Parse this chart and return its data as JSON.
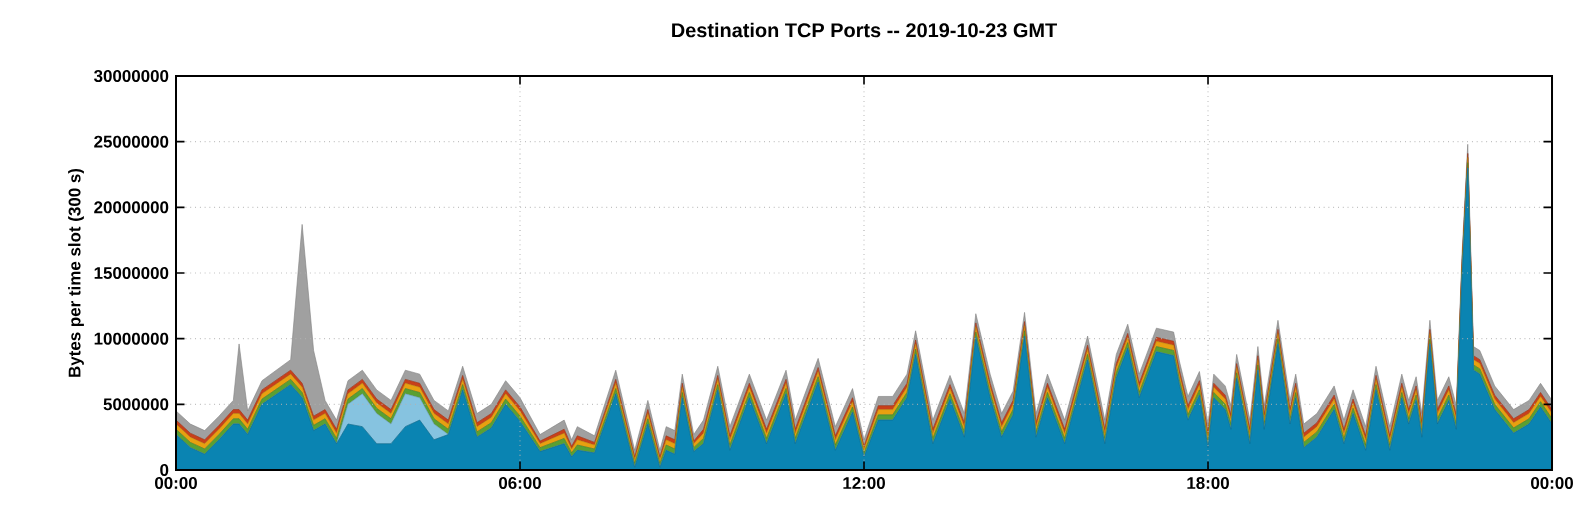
{
  "chart_data": {
    "type": "area",
    "stacked": true,
    "grid": true,
    "title": "Destination TCP Ports -- 2019-10-23 GMT",
    "ylabel": "Bytes per time slot (300 s)",
    "xlim": [
      0,
      24
    ],
    "xticks": [
      {
        "value": 0,
        "label": "00:00"
      },
      {
        "value": 6,
        "label": "06:00"
      },
      {
        "value": 12,
        "label": "12:00"
      },
      {
        "value": 18,
        "label": "18:00"
      },
      {
        "value": 24,
        "label": "00:00"
      }
    ],
    "ylim": [
      0,
      30000000
    ],
    "yticks": [
      0,
      5000000,
      10000000,
      15000000,
      20000000,
      25000000,
      30000000
    ],
    "x": [
      0,
      0.25,
      0.5,
      0.75,
      1.0,
      1.1,
      1.25,
      1.5,
      2.0,
      2.2,
      2.4,
      2.6,
      2.8,
      3.0,
      3.25,
      3.5,
      3.75,
      4.0,
      4.25,
      4.5,
      4.75,
      5.0,
      5.25,
      5.5,
      5.75,
      6.0,
      6.35,
      6.77,
      6.9,
      7.0,
      7.3,
      7.67,
      8.0,
      8.23,
      8.44,
      8.55,
      8.7,
      8.83,
      9.03,
      9.2,
      9.45,
      9.66,
      10.0,
      10.3,
      10.64,
      10.8,
      11.2,
      11.5,
      11.8,
      12.0,
      12.25,
      12.5,
      12.75,
      12.9,
      13.2,
      13.5,
      13.75,
      13.95,
      14.2,
      14.4,
      14.6,
      14.8,
      15.0,
      15.2,
      15.5,
      15.9,
      16.2,
      16.4,
      16.6,
      16.8,
      17.1,
      17.4,
      17.5,
      17.65,
      17.85,
      18.0,
      18.1,
      18.3,
      18.4,
      18.5,
      18.73,
      18.87,
      18.98,
      19.22,
      19.43,
      19.53,
      19.67,
      19.9,
      20.2,
      20.37,
      20.53,
      20.75,
      20.93,
      21.17,
      21.38,
      21.5,
      21.63,
      21.73,
      21.87,
      22.0,
      22.2,
      22.33,
      22.43,
      22.53,
      22.63,
      22.74,
      23.0,
      23.33,
      23.6,
      23.8,
      24.0
    ],
    "series": [
      {
        "color": "#0a84b2",
        "values": [
          2700000,
          1700000,
          1200000,
          2300000,
          3500000,
          3500000,
          2700000,
          5000000,
          6500000,
          5500000,
          3000000,
          3500000,
          2000000,
          3500000,
          3300000,
          2000000,
          2000000,
          3300000,
          3800000,
          2300000,
          2700000,
          6100000,
          2500000,
          3200000,
          5000000,
          3700000,
          1400000,
          2000000,
          1000000,
          1500000,
          1300000,
          5800000,
          200000,
          3500000,
          200000,
          1500000,
          1200000,
          5500000,
          1400000,
          2000000,
          6100000,
          1500000,
          5500000,
          2000000,
          5800000,
          2000000,
          6700000,
          1500000,
          4400000,
          1000000,
          3800000,
          3800000,
          5500000,
          8800000,
          2000000,
          5400000,
          2500000,
          10100000,
          5500000,
          2500000,
          4200000,
          10200000,
          2500000,
          5500000,
          2000000,
          8400000,
          2000000,
          7000000,
          9300000,
          5500000,
          9000000,
          8700000,
          6500000,
          3800000,
          5700000,
          1700000,
          5500000,
          4600000,
          3100000,
          7000000,
          2000000,
          7600000,
          3100000,
          9600000,
          3500000,
          5500000,
          1700000,
          2500000,
          4600000,
          2000000,
          4300000,
          1500000,
          6100000,
          1500000,
          5500000,
          3500000,
          5300000,
          2500000,
          9600000,
          3500000,
          5300000,
          3100000,
          14600000,
          23000000,
          7600000,
          7300000,
          4600000,
          2800000,
          3500000,
          4800000,
          3500000
        ]
      },
      {
        "color": "#86c3e0",
        "values": [
          0,
          0,
          0,
          0,
          0,
          0,
          0,
          0,
          0,
          0,
          0,
          0,
          0,
          1500000,
          2500000,
          2300000,
          1500000,
          2500000,
          1700000,
          1200000,
          0,
          0,
          0,
          0,
          0,
          0,
          0,
          0,
          0,
          0,
          0,
          0,
          0,
          0,
          0,
          0,
          0,
          0,
          0,
          0,
          0,
          0,
          0,
          0,
          0,
          0,
          0,
          0,
          0,
          0,
          0,
          0,
          0,
          0,
          0,
          0,
          0,
          0,
          0,
          0,
          0,
          0,
          0,
          0,
          0,
          0,
          0,
          0,
          0,
          0,
          0,
          0,
          0,
          0,
          0,
          0,
          0,
          0,
          0,
          0,
          0,
          0,
          0,
          0,
          0,
          0,
          0,
          0,
          0,
          0,
          0,
          0,
          0,
          0,
          0,
          0,
          0,
          0,
          0,
          0,
          0,
          0,
          0,
          0,
          0,
          0,
          0,
          0,
          0,
          0,
          0
        ]
      },
      {
        "color": "#5aa032",
        "values": [
          400000,
          400000,
          400000,
          400000,
          400000,
          400000,
          400000,
          400000,
          400000,
          400000,
          400000,
          400000,
          400000,
          400000,
          400000,
          400000,
          400000,
          400000,
          400000,
          400000,
          400000,
          400000,
          400000,
          400000,
          400000,
          400000,
          300000,
          400000,
          300000,
          400000,
          300000,
          400000,
          300000,
          400000,
          300000,
          400000,
          400000,
          400000,
          300000,
          400000,
          400000,
          400000,
          400000,
          400000,
          400000,
          400000,
          400000,
          400000,
          400000,
          300000,
          400000,
          400000,
          400000,
          400000,
          400000,
          400000,
          400000,
          400000,
          400000,
          400000,
          400000,
          400000,
          400000,
          400000,
          400000,
          400000,
          400000,
          400000,
          400000,
          400000,
          400000,
          400000,
          400000,
          400000,
          400000,
          400000,
          400000,
          400000,
          400000,
          400000,
          400000,
          400000,
          400000,
          400000,
          400000,
          400000,
          400000,
          400000,
          400000,
          400000,
          400000,
          400000,
          400000,
          400000,
          400000,
          400000,
          400000,
          400000,
          400000,
          400000,
          400000,
          400000,
          400000,
          400000,
          400000,
          400000,
          400000,
          400000,
          400000,
          400000,
          400000
        ]
      },
      {
        "color": "#e8a010",
        "values": [
          400000,
          400000,
          400000,
          400000,
          400000,
          400000,
          400000,
          400000,
          400000,
          400000,
          400000,
          400000,
          400000,
          400000,
          400000,
          400000,
          400000,
          400000,
          400000,
          400000,
          400000,
          400000,
          400000,
          400000,
          400000,
          400000,
          300000,
          400000,
          300000,
          400000,
          300000,
          400000,
          300000,
          400000,
          300000,
          400000,
          400000,
          400000,
          300000,
          400000,
          400000,
          400000,
          400000,
          400000,
          400000,
          400000,
          400000,
          400000,
          400000,
          300000,
          400000,
          400000,
          400000,
          400000,
          400000,
          400000,
          400000,
          400000,
          400000,
          400000,
          400000,
          400000,
          400000,
          400000,
          400000,
          400000,
          400000,
          400000,
          400000,
          400000,
          400000,
          400000,
          400000,
          400000,
          400000,
          400000,
          400000,
          400000,
          400000,
          400000,
          400000,
          400000,
          400000,
          400000,
          400000,
          400000,
          400000,
          400000,
          400000,
          400000,
          400000,
          400000,
          400000,
          400000,
          400000,
          400000,
          400000,
          400000,
          400000,
          400000,
          400000,
          400000,
          400000,
          400000,
          400000,
          400000,
          400000,
          400000,
          400000,
          400000,
          400000
        ]
      },
      {
        "color": "#c8401a",
        "values": [
          300000,
          300000,
          300000,
          300000,
          300000,
          300000,
          300000,
          300000,
          300000,
          300000,
          300000,
          300000,
          300000,
          300000,
          300000,
          300000,
          300000,
          300000,
          300000,
          300000,
          300000,
          300000,
          300000,
          300000,
          300000,
          300000,
          200000,
          300000,
          200000,
          300000,
          200000,
          300000,
          200000,
          300000,
          200000,
          300000,
          300000,
          300000,
          200000,
          300000,
          300000,
          300000,
          300000,
          300000,
          300000,
          300000,
          300000,
          300000,
          300000,
          200000,
          300000,
          300000,
          300000,
          300000,
          300000,
          300000,
          300000,
          300000,
          300000,
          300000,
          300000,
          300000,
          300000,
          300000,
          300000,
          300000,
          300000,
          300000,
          300000,
          300000,
          300000,
          300000,
          300000,
          300000,
          300000,
          300000,
          300000,
          300000,
          300000,
          300000,
          300000,
          300000,
          300000,
          300000,
          300000,
          300000,
          300000,
          300000,
          300000,
          300000,
          300000,
          300000,
          300000,
          300000,
          300000,
          300000,
          300000,
          300000,
          300000,
          300000,
          300000,
          300000,
          300000,
          300000,
          300000,
          300000,
          300000,
          300000,
          300000,
          300000,
          300000
        ]
      },
      {
        "color": "#a0a0a0",
        "values": [
          700000,
          700000,
          700000,
          700000,
          700000,
          5000000,
          700000,
          700000,
          800000,
          12100000,
          5000000,
          700000,
          700000,
          700000,
          700000,
          700000,
          700000,
          700000,
          700000,
          700000,
          700000,
          700000,
          700000,
          700000,
          700000,
          700000,
          500000,
          700000,
          500000,
          700000,
          500000,
          700000,
          500000,
          700000,
          500000,
          700000,
          700000,
          700000,
          500000,
          700000,
          700000,
          700000,
          700000,
          700000,
          700000,
          700000,
          700000,
          700000,
          700000,
          500000,
          700000,
          700000,
          700000,
          700000,
          700000,
          700000,
          700000,
          700000,
          700000,
          700000,
          700000,
          700000,
          700000,
          700000,
          700000,
          700000,
          700000,
          700000,
          700000,
          700000,
          700000,
          700000,
          700000,
          700000,
          700000,
          700000,
          700000,
          700000,
          700000,
          700000,
          700000,
          700000,
          700000,
          700000,
          700000,
          700000,
          700000,
          700000,
          700000,
          700000,
          700000,
          700000,
          700000,
          700000,
          700000,
          700000,
          700000,
          700000,
          700000,
          700000,
          700000,
          700000,
          700000,
          700000,
          700000,
          700000,
          700000,
          700000,
          700000,
          700000,
          700000
        ]
      }
    ]
  }
}
